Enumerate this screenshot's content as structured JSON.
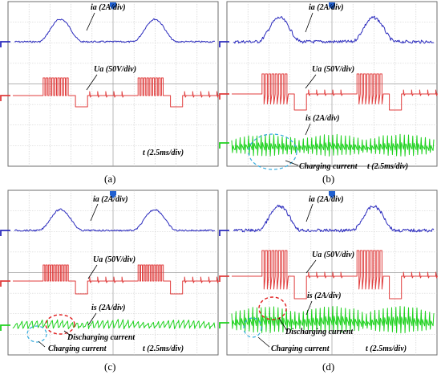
{
  "colors": {
    "ia": "#2b2bbd",
    "ua": "#e03c3c",
    "is": "#1ed21e",
    "marker_blue": "#1f5fd0"
  },
  "chart_data": [
    {
      "type": "line",
      "panel": "(a)",
      "time_label": "t",
      "time_scale": "(2.5ms/div)",
      "series": [
        {
          "name": "ia",
          "scale": "(2A/div)"
        },
        {
          "name": "Ua",
          "scale": "(50V/div)"
        }
      ],
      "annotations": []
    },
    {
      "type": "line",
      "panel": "(b)",
      "time_label": "t",
      "time_scale": "(2.5ms/div)",
      "series": [
        {
          "name": "ia",
          "scale": "(2A/div)"
        },
        {
          "name": "Ua",
          "scale": "(50V/div)"
        },
        {
          "name": "is",
          "scale": "(2A/div)"
        }
      ],
      "annotations": [
        "Charging current"
      ]
    },
    {
      "type": "line",
      "panel": "(c)",
      "time_label": "t",
      "time_scale": "(2.5ms/div)",
      "series": [
        {
          "name": "ia",
          "scale": "(2A/div)"
        },
        {
          "name": "Ua",
          "scale": "(50V/div)"
        },
        {
          "name": "is",
          "scale": "(2A/div)"
        }
      ],
      "annotations": [
        "Discharging current",
        "Charging current"
      ]
    },
    {
      "type": "line",
      "panel": "(d)",
      "time_label": "t",
      "time_scale": "(2.5ms/div)",
      "series": [
        {
          "name": "ia",
          "scale": "(2A/div)"
        },
        {
          "name": "Ua",
          "scale": "(50V/div)"
        },
        {
          "name": "is",
          "scale": "(2A/div)"
        }
      ],
      "annotations": [
        "Discharging current",
        "Charging current"
      ]
    }
  ]
}
